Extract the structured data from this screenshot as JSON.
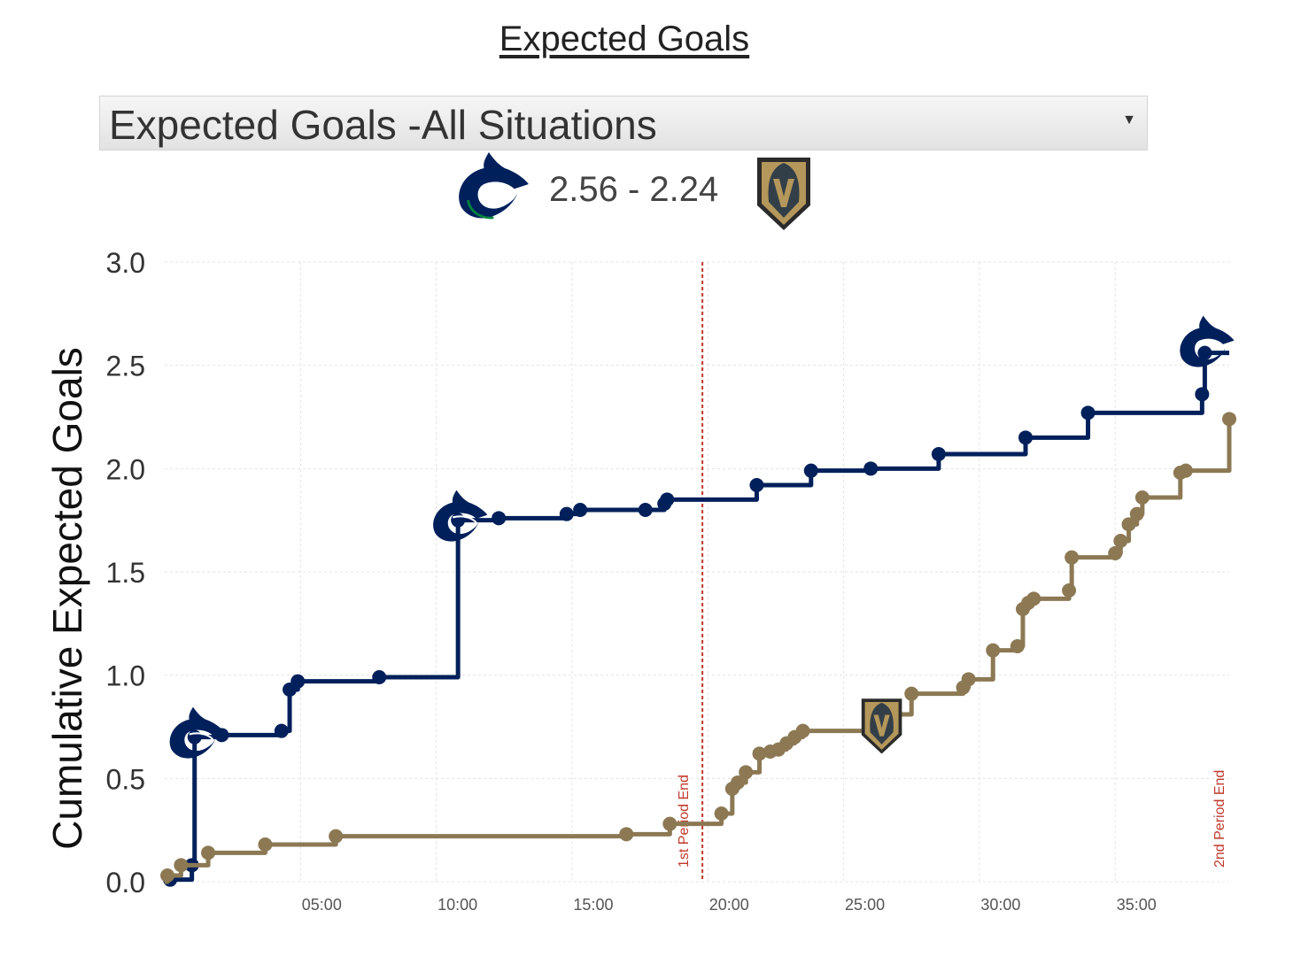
{
  "title": "Expected Goals",
  "dropdown": {
    "selected": "Expected Goals -All Situations",
    "arrow_icon": "triangle-down-icon"
  },
  "header": {
    "score": "2.56 - 2.24",
    "home_logo": "canucks-orca-logo-icon",
    "away_logo": "golden-knights-helmet-logo-icon"
  },
  "colors": {
    "canucks": "#00205b",
    "knights": "#8c7954",
    "period_line": "#c0392b",
    "grid": "#e3e3e3"
  },
  "chart_data": {
    "type": "line",
    "step": true,
    "ylabel": "Cumulative Expected Goals",
    "xlabel": "",
    "ylim": [
      0,
      3.0
    ],
    "xlim_minutes": [
      0,
      39.2
    ],
    "y_ticks": [
      "0.0",
      "0.5",
      "1.0",
      "1.5",
      "2.0",
      "2.5",
      "3.0"
    ],
    "x_ticks": [
      {
        "label": "05:00",
        "minute": 5
      },
      {
        "label": "10:00",
        "minute": 10
      },
      {
        "label": "15:00",
        "minute": 15
      },
      {
        "label": "20:00",
        "minute": 20
      },
      {
        "label": "25:00",
        "minute": 25
      },
      {
        "label": "30:00",
        "minute": 30
      },
      {
        "label": "35:00",
        "minute": 35
      }
    ],
    "grid": true,
    "period_markers": [
      {
        "label": "1st Period End",
        "minute": 19.8,
        "dashed": true
      },
      {
        "label": "2nd Period End",
        "minute": 39.2,
        "dashed": false
      }
    ],
    "series": [
      {
        "color": "#00205b",
        "points": [
          [
            0.2,
            0.01
          ],
          [
            1.0,
            0.08
          ],
          [
            1.1,
            0.7
          ],
          [
            2.1,
            0.71
          ],
          [
            4.3,
            0.73
          ],
          [
            4.6,
            0.93
          ],
          [
            4.9,
            0.97
          ],
          [
            7.9,
            0.99
          ],
          [
            10.8,
            1.75
          ],
          [
            12.3,
            1.76
          ],
          [
            14.8,
            1.78
          ],
          [
            15.3,
            1.8
          ],
          [
            17.7,
            1.8
          ],
          [
            18.4,
            1.83
          ],
          [
            18.5,
            1.85
          ],
          [
            21.8,
            1.92
          ],
          [
            23.8,
            1.99
          ],
          [
            26.0,
            2.0
          ],
          [
            28.5,
            2.07
          ],
          [
            31.7,
            2.15
          ],
          [
            34.0,
            2.27
          ],
          [
            38.2,
            2.36
          ],
          [
            38.3,
            2.56
          ]
        ],
        "goals": [
          [
            1.1,
            0.7
          ],
          [
            10.8,
            1.75
          ],
          [
            38.3,
            2.56
          ]
        ],
        "end_marker": true
      },
      {
        "color": "#8c7954",
        "points": [
          [
            0.1,
            0.03
          ],
          [
            0.6,
            0.08
          ],
          [
            1.6,
            0.14
          ],
          [
            3.7,
            0.18
          ],
          [
            6.3,
            0.22
          ],
          [
            17.0,
            0.23
          ],
          [
            18.6,
            0.28
          ],
          [
            20.5,
            0.33
          ],
          [
            20.9,
            0.45
          ],
          [
            21.1,
            0.48
          ],
          [
            21.4,
            0.53
          ],
          [
            21.9,
            0.62
          ],
          [
            22.3,
            0.63
          ],
          [
            22.6,
            0.64
          ],
          [
            22.9,
            0.67
          ],
          [
            23.2,
            0.7
          ],
          [
            23.5,
            0.73
          ],
          [
            26.8,
            0.81
          ],
          [
            27.5,
            0.91
          ],
          [
            29.4,
            0.94
          ],
          [
            29.6,
            0.98
          ],
          [
            30.5,
            1.12
          ],
          [
            31.4,
            1.14
          ],
          [
            31.6,
            1.32
          ],
          [
            31.8,
            1.35
          ],
          [
            32.0,
            1.37
          ],
          [
            33.3,
            1.41
          ],
          [
            33.4,
            1.57
          ],
          [
            35.0,
            1.59
          ],
          [
            35.2,
            1.65
          ],
          [
            35.5,
            1.73
          ],
          [
            35.8,
            1.78
          ],
          [
            36.0,
            1.86
          ],
          [
            37.4,
            1.98
          ],
          [
            37.6,
            1.99
          ],
          [
            39.2,
            2.24
          ]
        ],
        "goals": [
          [
            26.4,
            0.76
          ]
        ],
        "end_marker": false
      }
    ]
  }
}
